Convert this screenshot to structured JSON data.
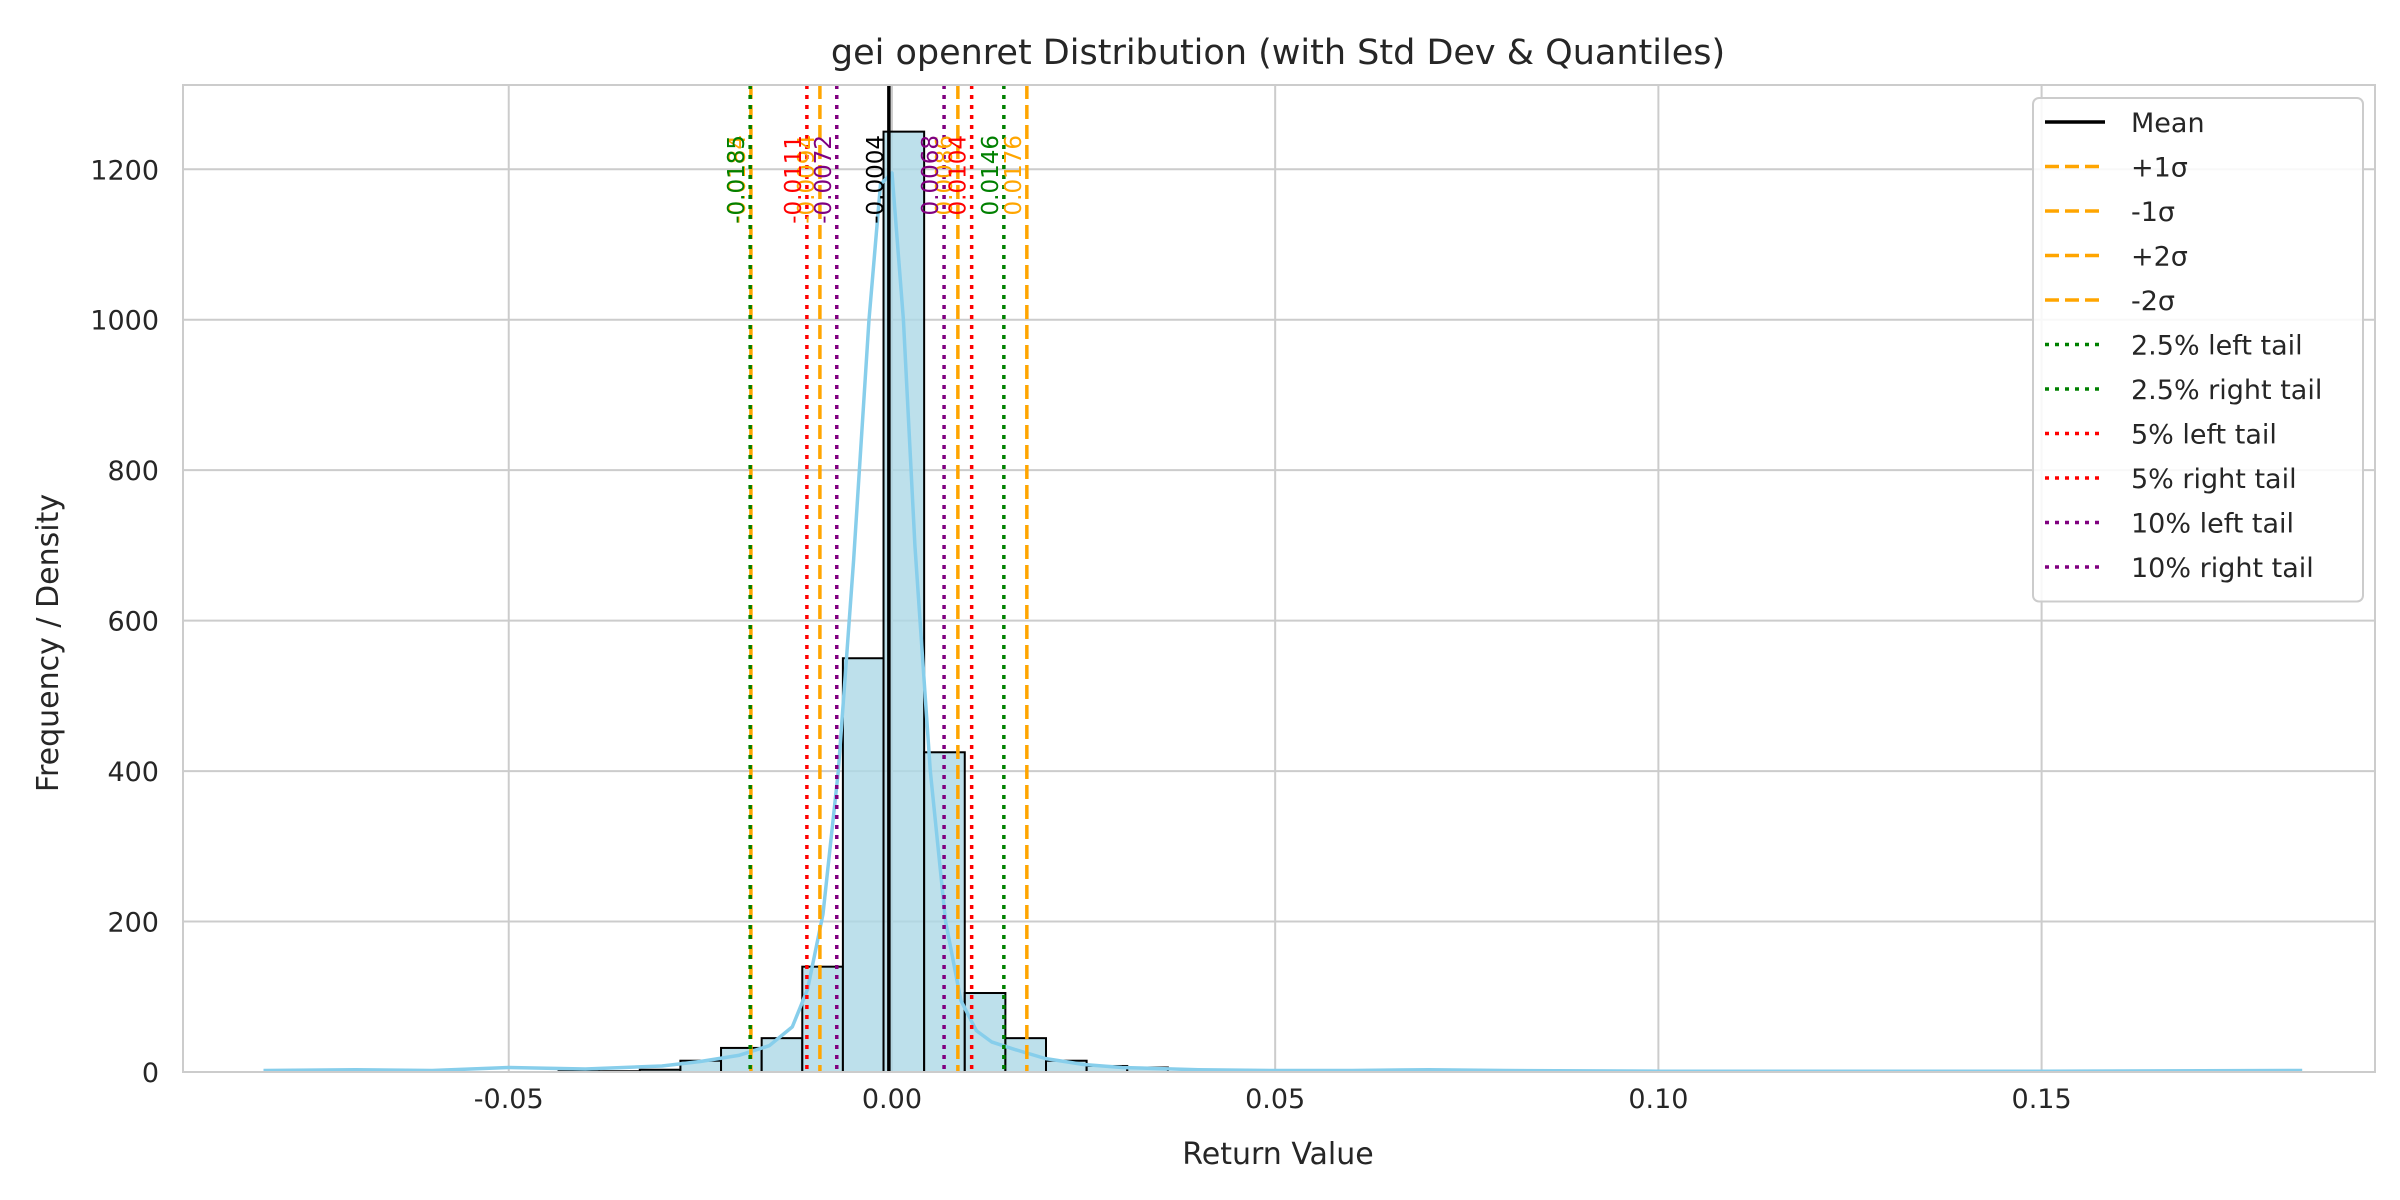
{
  "chart_data": {
    "type": "bar",
    "title": "gei openret Distribution (with Std Dev & Quantiles)",
    "xlabel": "Return Value",
    "ylabel": "Frequency / Density",
    "xlim": [
      -0.0925,
      0.1935
    ],
    "ylim": [
      0,
      1312
    ],
    "grid": true,
    "legend_position": "top-right",
    "x_ticks": [
      {
        "value": -0.05,
        "label": "-0.05"
      },
      {
        "value": 0.0,
        "label": "0.00"
      },
      {
        "value": 0.05,
        "label": "0.05"
      },
      {
        "value": 0.1,
        "label": "0.10"
      },
      {
        "value": 0.15,
        "label": "0.15"
      }
    ],
    "y_ticks": [
      {
        "value": 0,
        "label": "0"
      },
      {
        "value": 200,
        "label": "200"
      },
      {
        "value": 400,
        "label": "400"
      },
      {
        "value": 600,
        "label": "600"
      },
      {
        "value": 800,
        "label": "800"
      },
      {
        "value": 1000,
        "label": "1000"
      },
      {
        "value": 1200,
        "label": "1200"
      }
    ],
    "histogram": {
      "bin_start": -0.0435,
      "bin_width": 0.0053,
      "counts": [
        1,
        1,
        3,
        15,
        32,
        45,
        140,
        550,
        1250,
        425,
        105,
        45,
        15,
        8,
        6
      ],
      "fill": "#add8e6",
      "edge": "#000000"
    },
    "kde": {
      "color": "#87ceeb",
      "x": [
        -0.082,
        -0.07,
        -0.06,
        -0.05,
        -0.04,
        -0.03,
        -0.025,
        -0.02,
        -0.016,
        -0.013,
        -0.011,
        -0.009,
        -0.007,
        -0.005,
        -0.003,
        -0.0015,
        0.0,
        0.0015,
        0.003,
        0.005,
        0.007,
        0.009,
        0.011,
        0.013,
        0.016,
        0.02,
        0.025,
        0.03,
        0.04,
        0.05,
        0.06,
        0.07,
        0.08,
        0.1,
        0.12,
        0.15,
        0.184
      ],
      "y": [
        2,
        3,
        2,
        6,
        4,
        8,
        14,
        22,
        35,
        60,
        110,
        210,
        400,
        680,
        1000,
        1180,
        1195,
        1000,
        700,
        400,
        200,
        95,
        55,
        40,
        30,
        18,
        10,
        6,
        3,
        2,
        2,
        3,
        2,
        1,
        1,
        1,
        2
      ]
    },
    "reference_lines": [
      {
        "name": "Mean",
        "value": -0.0004,
        "label": "-0.0004",
        "color": "#000000",
        "style": "solid",
        "legend": "Mean"
      },
      {
        "name": "+1σ",
        "value": 0.0086,
        "label": "0.0086",
        "color": "#ffa500",
        "style": "dashed",
        "legend": "+1σ"
      },
      {
        "name": "-1σ",
        "value": -0.0094,
        "label": "-0.0094",
        "color": "#ffa500",
        "style": "dashed",
        "legend": "-1σ"
      },
      {
        "name": "+2σ",
        "value": 0.0176,
        "label": "0.0176",
        "color": "#ffa500",
        "style": "dashed",
        "legend": "+2σ"
      },
      {
        "name": "-2σ",
        "value": -0.0184,
        "label": "-0.0184",
        "color": "#ffa500",
        "style": "dashed",
        "legend": "-2σ"
      },
      {
        "name": "2.5% left tail",
        "value": -0.0185,
        "label": "-0.0185",
        "color": "#008000",
        "style": "dotted",
        "legend": "2.5% left tail"
      },
      {
        "name": "2.5% right tail",
        "value": 0.0146,
        "label": "0.0146",
        "color": "#008000",
        "style": "dotted",
        "legend": "2.5% right tail"
      },
      {
        "name": "5% left tail",
        "value": -0.0111,
        "label": "-0.0111",
        "color": "#ff0000",
        "style": "dotted",
        "legend": "5% left tail"
      },
      {
        "name": "5% right tail",
        "value": 0.0104,
        "label": "0.0104",
        "color": "#ff0000",
        "style": "dotted",
        "legend": "5% right tail"
      },
      {
        "name": "10% left tail",
        "value": -0.0072,
        "label": "-0.0072",
        "color": "#800080",
        "style": "dotted",
        "legend": "10% left tail"
      },
      {
        "name": "10% right tail",
        "value": 0.0068,
        "label": "0.0068",
        "color": "#800080",
        "style": "dotted",
        "legend": "10% right tail"
      }
    ]
  }
}
